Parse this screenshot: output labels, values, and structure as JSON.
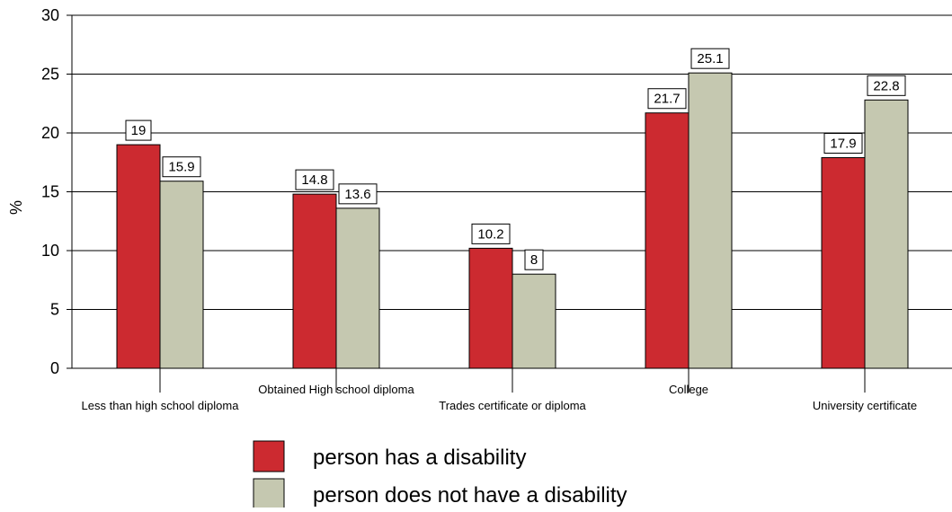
{
  "chart_data": {
    "type": "bar",
    "ylabel": "%",
    "ylim": [
      0,
      30
    ],
    "yticks": [
      0,
      5,
      10,
      15,
      20,
      25,
      30
    ],
    "categories": [
      "Less than high school diploma",
      "Obtained High school diploma",
      "Trades certificate or diploma",
      "College",
      "University certificate"
    ],
    "series": [
      {
        "name": "person has a disability",
        "color": "#cc2a30",
        "values": [
          19,
          14.8,
          10.2,
          21.7,
          17.9
        ],
        "labels": [
          "19",
          "14.8",
          "10.2",
          "21.7",
          "17.9"
        ]
      },
      {
        "name": "person does not have a disability",
        "color": "#c5c8b0",
        "values": [
          15.9,
          13.6,
          8,
          25.1,
          22.8
        ],
        "labels": [
          "15.9",
          "13.6",
          "8",
          "25.1",
          "22.8"
        ]
      }
    ],
    "grid": true,
    "legend_position": "bottom"
  }
}
